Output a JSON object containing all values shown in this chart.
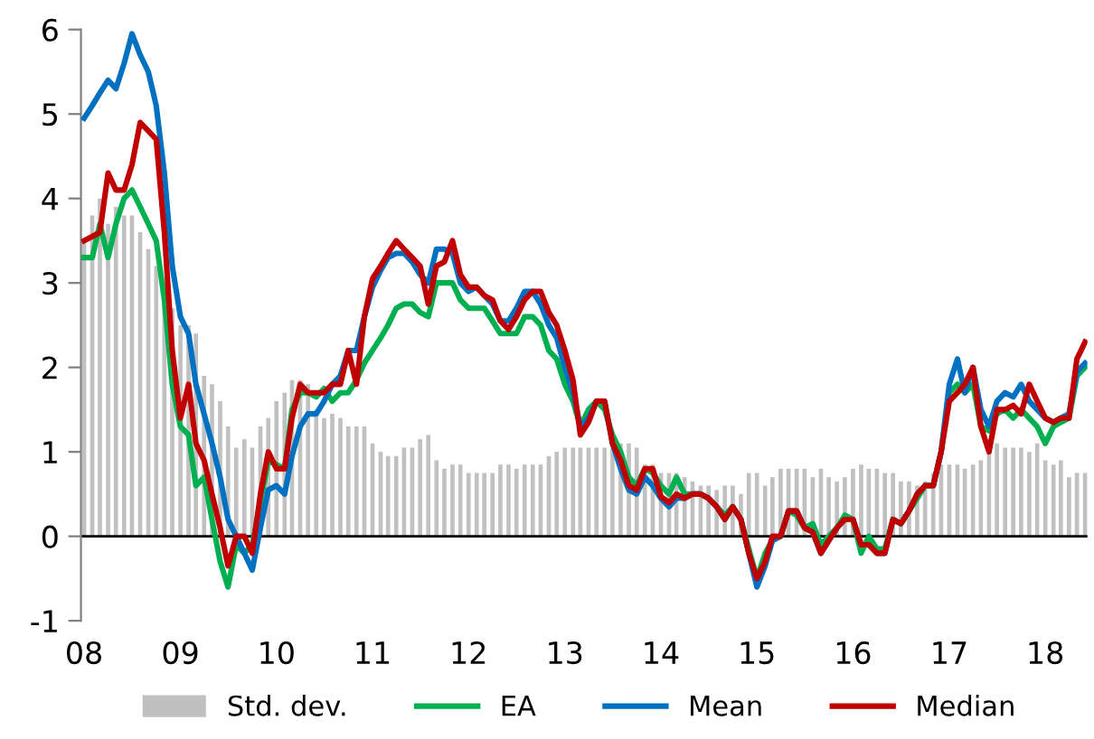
{
  "chart_data": {
    "type": "line",
    "x": [
      "2008-01",
      "2008-02",
      "2008-03",
      "2008-04",
      "2008-05",
      "2008-06",
      "2008-07",
      "2008-08",
      "2008-09",
      "2008-10",
      "2008-11",
      "2008-12",
      "2009-01",
      "2009-02",
      "2009-03",
      "2009-04",
      "2009-05",
      "2009-06",
      "2009-07",
      "2009-08",
      "2009-09",
      "2009-10",
      "2009-11",
      "2009-12",
      "2010-01",
      "2010-02",
      "2010-03",
      "2010-04",
      "2010-05",
      "2010-06",
      "2010-07",
      "2010-08",
      "2010-09",
      "2010-10",
      "2010-11",
      "2010-12",
      "2011-01",
      "2011-02",
      "2011-03",
      "2011-04",
      "2011-05",
      "2011-06",
      "2011-07",
      "2011-08",
      "2011-09",
      "2011-10",
      "2011-11",
      "2011-12",
      "2012-01",
      "2012-02",
      "2012-03",
      "2012-04",
      "2012-05",
      "2012-06",
      "2012-07",
      "2012-08",
      "2012-09",
      "2012-10",
      "2012-11",
      "2012-12",
      "2013-01",
      "2013-02",
      "2013-03",
      "2013-04",
      "2013-05",
      "2013-06",
      "2013-07",
      "2013-08",
      "2013-09",
      "2013-10",
      "2013-11",
      "2013-12",
      "2014-01",
      "2014-02",
      "2014-03",
      "2014-04",
      "2014-05",
      "2014-06",
      "2014-07",
      "2014-08",
      "2014-09",
      "2014-10",
      "2014-11",
      "2014-12",
      "2015-01",
      "2015-02",
      "2015-03",
      "2015-04",
      "2015-05",
      "2015-06",
      "2015-07",
      "2015-08",
      "2015-09",
      "2015-10",
      "2015-11",
      "2015-12",
      "2016-01",
      "2016-02",
      "2016-03",
      "2016-04",
      "2016-05",
      "2016-06",
      "2016-07",
      "2016-08",
      "2016-09",
      "2016-10",
      "2016-11",
      "2016-12",
      "2017-01",
      "2017-02",
      "2017-03",
      "2017-04",
      "2017-05",
      "2017-06",
      "2017-07",
      "2017-08",
      "2017-09",
      "2017-10",
      "2017-11",
      "2017-12",
      "2018-01",
      "2018-02",
      "2018-03",
      "2018-04",
      "2018-05",
      "2018-06"
    ],
    "series": [
      {
        "name": "Std. dev.",
        "type": "bar",
        "color": "#c0c0c0",
        "values": [
          3.5,
          3.8,
          4.0,
          3.7,
          3.9,
          3.8,
          3.8,
          3.6,
          3.4,
          3.2,
          3.0,
          2.7,
          2.5,
          2.5,
          2.4,
          1.9,
          1.8,
          1.6,
          1.3,
          1.05,
          1.15,
          1.05,
          1.3,
          1.4,
          1.6,
          1.7,
          1.85,
          1.85,
          1.8,
          1.5,
          1.4,
          1.45,
          1.4,
          1.3,
          1.3,
          1.3,
          1.1,
          1.0,
          0.95,
          0.95,
          1.05,
          1.05,
          1.15,
          1.2,
          0.9,
          0.8,
          0.85,
          0.85,
          0.75,
          0.75,
          0.75,
          0.75,
          0.85,
          0.85,
          0.8,
          0.85,
          0.85,
          0.85,
          0.95,
          1.0,
          1.05,
          1.05,
          1.05,
          1.05,
          1.05,
          1.05,
          1.05,
          1.1,
          1.1,
          1.05,
          0.85,
          0.85,
          0.75,
          0.75,
          0.75,
          0.7,
          0.65,
          0.6,
          0.6,
          0.55,
          0.6,
          0.6,
          0.5,
          0.75,
          0.75,
          0.6,
          0.7,
          0.8,
          0.8,
          0.8,
          0.8,
          0.7,
          0.8,
          0.7,
          0.65,
          0.7,
          0.8,
          0.85,
          0.8,
          0.8,
          0.75,
          0.75,
          0.65,
          0.65,
          0.6,
          0.65,
          0.75,
          0.85,
          0.85,
          0.85,
          0.8,
          0.85,
          0.9,
          1.15,
          1.1,
          1.05,
          1.05,
          1.05,
          1.0,
          1.1,
          0.9,
          0.85,
          0.9,
          0.7,
          0.75,
          0.75
        ]
      },
      {
        "name": "EA",
        "color": "#00b050",
        "values": [
          3.3,
          3.3,
          3.7,
          3.3,
          3.7,
          4.0,
          4.1,
          3.9,
          3.7,
          3.5,
          2.8,
          1.8,
          1.3,
          1.2,
          0.6,
          0.7,
          0.2,
          -0.3,
          -0.6,
          -0.1,
          -0.2,
          -0.1,
          0.4,
          0.9,
          0.85,
          0.8,
          1.5,
          1.7,
          1.7,
          1.65,
          1.75,
          1.6,
          1.7,
          1.7,
          1.85,
          2.05,
          2.2,
          2.35,
          2.5,
          2.7,
          2.75,
          2.75,
          2.65,
          2.6,
          3.0,
          3.0,
          3.0,
          2.8,
          2.7,
          2.7,
          2.7,
          2.55,
          2.4,
          2.4,
          2.4,
          2.6,
          2.6,
          2.5,
          2.2,
          2.1,
          1.8,
          1.6,
          1.3,
          1.5,
          1.6,
          1.5,
          1.2,
          1.0,
          0.7,
          0.6,
          0.8,
          0.75,
          0.6,
          0.5,
          0.7,
          0.5,
          0.5,
          0.5,
          0.45,
          0.35,
          0.25,
          0.35,
          0.2,
          -0.15,
          -0.5,
          -0.2,
          -0.05,
          0.0,
          0.3,
          0.25,
          0.1,
          0.15,
          -0.1,
          0.0,
          0.1,
          0.25,
          0.2,
          -0.2,
          0.0,
          -0.15,
          -0.15,
          0.2,
          0.15,
          0.3,
          0.45,
          0.6,
          0.6,
          1.0,
          1.7,
          1.8,
          1.7,
          1.8,
          1.3,
          1.25,
          1.45,
          1.5,
          1.4,
          1.5,
          1.4,
          1.3,
          1.1,
          1.3,
          1.35,
          1.4,
          1.9,
          2.0
        ]
      },
      {
        "name": "Mean",
        "color": "#0070c0",
        "values": [
          4.95,
          5.1,
          5.25,
          5.4,
          5.3,
          5.6,
          5.95,
          5.7,
          5.5,
          5.1,
          4.3,
          3.2,
          2.6,
          2.4,
          1.8,
          1.45,
          1.1,
          0.7,
          0.2,
          0.0,
          -0.2,
          -0.4,
          0.1,
          0.55,
          0.6,
          0.5,
          0.95,
          1.3,
          1.45,
          1.45,
          1.6,
          1.8,
          1.9,
          2.2,
          2.2,
          2.6,
          2.95,
          3.15,
          3.3,
          3.35,
          3.35,
          3.25,
          3.1,
          3.0,
          3.4,
          3.4,
          3.35,
          3.0,
          2.9,
          2.95,
          2.85,
          2.75,
          2.55,
          2.55,
          2.7,
          2.9,
          2.9,
          2.75,
          2.5,
          2.35,
          2.0,
          1.7,
          1.3,
          1.4,
          1.6,
          1.6,
          1.1,
          0.8,
          0.55,
          0.5,
          0.7,
          0.6,
          0.45,
          0.35,
          0.45,
          0.45,
          0.5,
          0.5,
          0.45,
          0.35,
          0.2,
          0.35,
          0.2,
          -0.2,
          -0.6,
          -0.35,
          -0.05,
          0.0,
          0.3,
          0.3,
          0.1,
          0.05,
          -0.2,
          -0.05,
          0.1,
          0.2,
          0.2,
          -0.1,
          -0.1,
          -0.2,
          -0.2,
          0.2,
          0.15,
          0.3,
          0.5,
          0.6,
          0.6,
          1.0,
          1.8,
          2.1,
          1.7,
          2.0,
          1.5,
          1.3,
          1.6,
          1.7,
          1.65,
          1.8,
          1.6,
          1.5,
          1.4,
          1.35,
          1.4,
          1.45,
          1.95,
          2.05
        ]
      },
      {
        "name": "Median",
        "color": "#c00000",
        "values": [
          3.5,
          3.55,
          3.6,
          4.3,
          4.1,
          4.1,
          4.4,
          4.9,
          4.8,
          4.7,
          3.6,
          2.2,
          1.4,
          1.8,
          1.1,
          0.9,
          0.5,
          0.1,
          -0.35,
          0.0,
          0.0,
          -0.2,
          0.5,
          1.0,
          0.8,
          0.8,
          1.4,
          1.8,
          1.7,
          1.7,
          1.7,
          1.8,
          1.8,
          2.2,
          1.8,
          2.6,
          3.05,
          3.2,
          3.35,
          3.5,
          3.4,
          3.3,
          3.2,
          2.75,
          3.2,
          3.25,
          3.5,
          3.1,
          2.95,
          2.95,
          2.85,
          2.8,
          2.55,
          2.45,
          2.6,
          2.8,
          2.9,
          2.9,
          2.65,
          2.5,
          2.2,
          1.85,
          1.2,
          1.35,
          1.6,
          1.6,
          1.1,
          0.9,
          0.6,
          0.55,
          0.8,
          0.8,
          0.47,
          0.4,
          0.5,
          0.45,
          0.5,
          0.5,
          0.45,
          0.35,
          0.2,
          0.35,
          0.2,
          -0.2,
          -0.5,
          -0.3,
          0.0,
          0.0,
          0.3,
          0.3,
          0.1,
          0.05,
          -0.2,
          -0.05,
          0.1,
          0.2,
          0.2,
          -0.1,
          -0.1,
          -0.2,
          -0.2,
          0.2,
          0.15,
          0.3,
          0.5,
          0.6,
          0.6,
          1.0,
          1.6,
          1.7,
          1.8,
          2.0,
          1.3,
          1.0,
          1.5,
          1.5,
          1.55,
          1.45,
          1.8,
          1.6,
          1.4,
          1.35,
          1.4,
          1.4,
          2.1,
          2.3
        ]
      }
    ],
    "xlim": [
      "2007-12-20",
      "2018-06-10"
    ],
    "xticks": [
      {
        "value": "2008-01",
        "label": "08"
      },
      {
        "value": "2009-01",
        "label": "09"
      },
      {
        "value": "2010-01",
        "label": "10"
      },
      {
        "value": "2011-01",
        "label": "11"
      },
      {
        "value": "2012-01",
        "label": "12"
      },
      {
        "value": "2013-01",
        "label": "13"
      },
      {
        "value": "2014-01",
        "label": "14"
      },
      {
        "value": "2015-01",
        "label": "15"
      },
      {
        "value": "2016-01",
        "label": "16"
      },
      {
        "value": "2017-01",
        "label": "17"
      },
      {
        "value": "2018-01",
        "label": "18"
      }
    ],
    "ylim": [
      -1,
      6
    ],
    "yticks": [
      -1,
      0,
      1,
      2,
      3,
      4,
      5,
      6
    ],
    "ref_lines": [
      {
        "axis": "y",
        "value": 0,
        "color": "#000000"
      }
    ],
    "grid": false,
    "legend": "bottom",
    "marker": "none",
    "line_style": "solid"
  }
}
